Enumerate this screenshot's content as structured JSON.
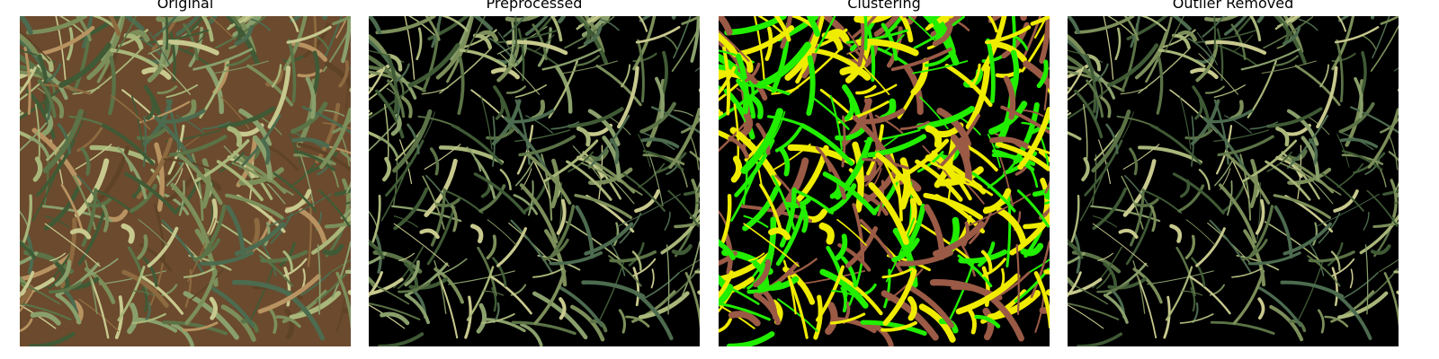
{
  "panels": [
    {
      "title": "Original"
    },
    {
      "title": "Preprocessed"
    },
    {
      "title": "Clustering"
    },
    {
      "title": "Outlier Removed"
    }
  ],
  "colors": {
    "background": "#ffffff",
    "mask": "#000000",
    "cluster_green": "#22ee00",
    "cluster_yellow": "#f0ec00",
    "cluster_brown": "#9a5a45",
    "foliage_dark": "#3f5a35",
    "foliage_light": "#a9b77a",
    "soil": "#6b4a2e"
  }
}
